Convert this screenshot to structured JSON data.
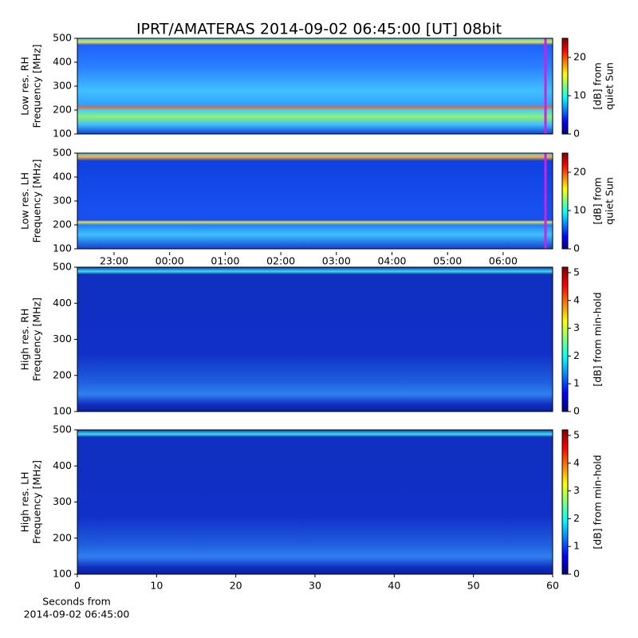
{
  "chart_data": [
    {
      "type": "heatmap",
      "title": "IPRT/AMATERAS 2014-09-02 06:45:00 [UT]   08bit",
      "ylabel": [
        "Low res. RH",
        "Frequency [MHz]"
      ],
      "ylim": [
        100,
        500
      ],
      "yticks": [
        100,
        200,
        300,
        400,
        500
      ],
      "colorbar": {
        "label": [
          "[dB] from",
          "quiet Sun"
        ],
        "lim": [
          0,
          25
        ],
        "ticks": [
          0,
          10,
          20
        ]
      }
    },
    {
      "type": "heatmap",
      "ylabel": [
        "Low res. LH",
        "Frequency [MHz]"
      ],
      "ylim": [
        100,
        500
      ],
      "yticks": [
        100,
        200,
        300,
        400,
        500
      ],
      "categories": [
        "23:00",
        "00:00",
        "01:00",
        "02:00",
        "03:00",
        "04:00",
        "05:00",
        "06:00"
      ],
      "colorbar": {
        "label": [
          "[dB] from",
          "quiet Sun"
        ],
        "lim": [
          0,
          25
        ],
        "ticks": [
          0,
          10,
          20
        ]
      }
    },
    {
      "type": "heatmap",
      "ylabel": [
        "High res. RH",
        "Frequency [MHz]"
      ],
      "ylim": [
        100,
        500
      ],
      "yticks": [
        100,
        200,
        300,
        400,
        500
      ],
      "colorbar": {
        "label": [
          "[dB] from min-hold"
        ],
        "lim": [
          0,
          5.2
        ],
        "ticks": [
          0,
          1,
          2,
          3,
          4,
          5
        ]
      }
    },
    {
      "type": "heatmap",
      "ylabel": [
        "High res. LH",
        "Frequency [MHz]"
      ],
      "ylim": [
        100,
        500
      ],
      "yticks": [
        100,
        200,
        300,
        400,
        500
      ],
      "xlim": [
        0,
        60
      ],
      "xticks": [
        0,
        10,
        20,
        30,
        40,
        50,
        60
      ],
      "xlabel": [
        "Seconds from",
        "2014-09-02 06:45:00"
      ],
      "colorbar": {
        "label": [
          "[dB] from min-hold"
        ],
        "lim": [
          0,
          5.2
        ],
        "ticks": [
          0,
          1,
          2,
          3,
          4,
          5
        ]
      }
    }
  ]
}
